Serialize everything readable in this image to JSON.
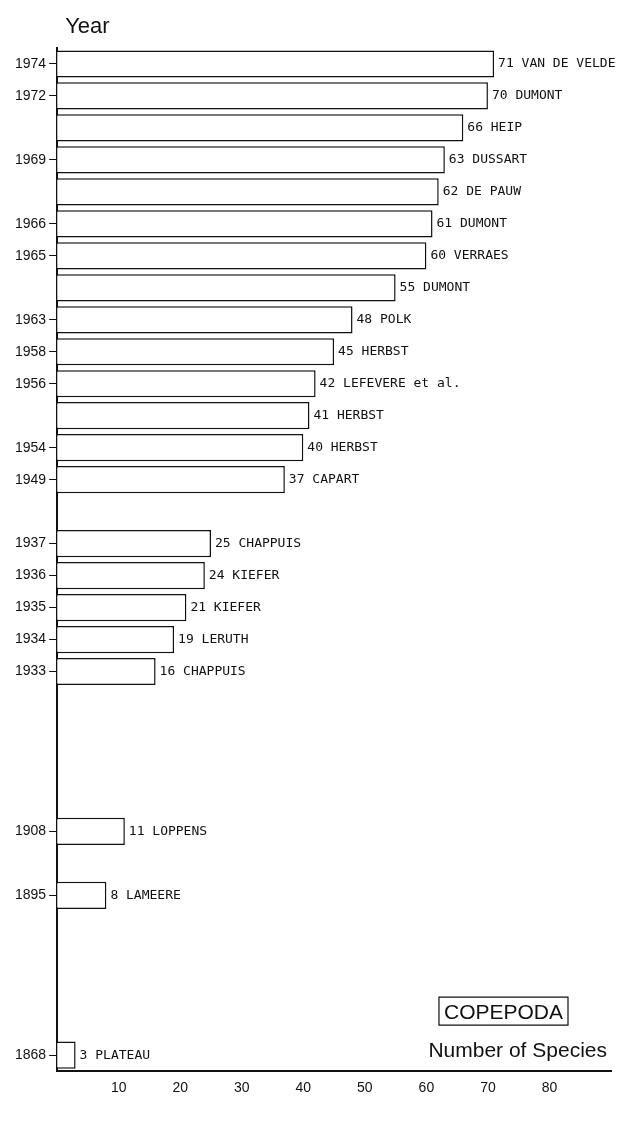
{
  "chart_data": {
    "type": "bar",
    "orientation": "horizontal",
    "title": "COPEPODA",
    "xlabel": "Number of Species",
    "ylabel": "Year",
    "categories": [
      "1974",
      "1972",
      null,
      "1969",
      null,
      "1966",
      "1965",
      null,
      "1963",
      "1958",
      "1956",
      null,
      "1954",
      "1949",
      null,
      "1937",
      "1936",
      "1935",
      "1934",
      "1933",
      null,
      null,
      null,
      null,
      "1908",
      null,
      "1895",
      null,
      null,
      null,
      null,
      "1868"
    ],
    "values": [
      71,
      70,
      66,
      63,
      62,
      61,
      60,
      55,
      48,
      45,
      42,
      41,
      40,
      37,
      null,
      25,
      24,
      21,
      19,
      16,
      null,
      null,
      null,
      null,
      11,
      null,
      8,
      null,
      null,
      null,
      null,
      3
    ],
    "value_labels": [
      "71 VAN DE VELDE",
      "70 DUMONT",
      "66 HEIP",
      "63 DUSSART",
      "62 DE PAUW",
      "61 DUMONT",
      "60 VERRAES",
      "55 DUMONT",
      "48 POLK",
      "45 HERBST",
      "42 LEFEVERE et al.",
      "41 HERBST",
      "40 HERBST",
      "37 CAPART",
      null,
      "25 CHAPPUIS",
      "24 KIEFER",
      "21 KIEFER",
      "19 LERUTH",
      "16 CHAPPUIS",
      null,
      null,
      null,
      null,
      "11 LOPPENS",
      null,
      "8 LAMEERE",
      null,
      null,
      null,
      null,
      "3 PLATEAU"
    ],
    "color": "#ffffff",
    "xlim": [
      0,
      90
    ],
    "xticks": [
      10,
      20,
      30,
      40,
      50,
      60,
      70,
      80
    ],
    "grid": false,
    "legend": false
  }
}
